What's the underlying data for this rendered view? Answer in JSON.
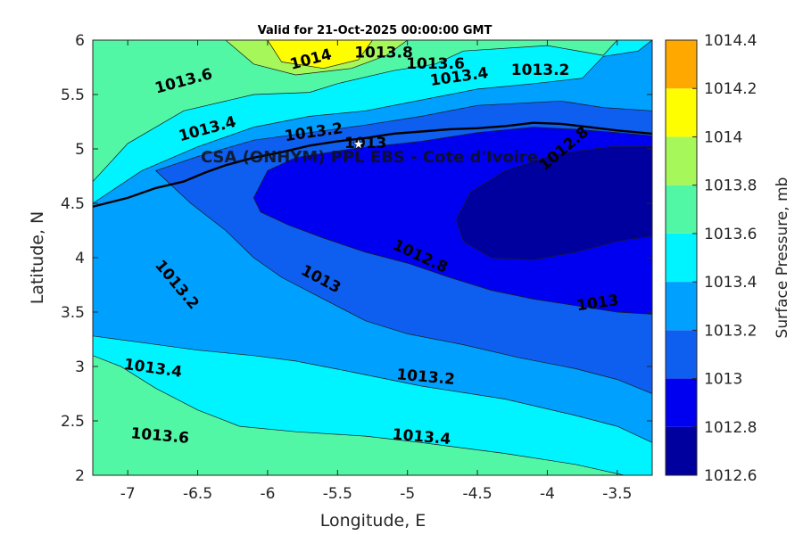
{
  "chart_data": {
    "type": "contour",
    "title": "Valid for 21-Oct-2025 00:00:00 GMT",
    "xlabel": "Longitude, E",
    "ylabel": "Latitude, N",
    "xlim": [
      -7.25,
      -3.25
    ],
    "ylim": [
      2,
      6
    ],
    "xticks": [
      -7,
      -6.5,
      -6,
      -5.5,
      -5,
      -4.5,
      -4,
      -3.5
    ],
    "xtick_labels": [
      "-7",
      "-6.5",
      "-6",
      "-5.5",
      "-5",
      "-4.5",
      "-4",
      "-3.5"
    ],
    "yticks": [
      2,
      2.5,
      3,
      3.5,
      4,
      4.5,
      5,
      5.5,
      6
    ],
    "ytick_labels": [
      "2",
      "2.5",
      "3",
      "3.5",
      "4",
      "4.5",
      "5",
      "5.5",
      "6"
    ],
    "annotation": "CSA (ONHYM) PPL EBS  - Cote d'Ivoire",
    "station": {
      "lon": -5.35,
      "lat": 5.05
    },
    "colorbar": {
      "label": "Surface Pressure, mb",
      "levels": [
        1012.6,
        1012.8,
        1013,
        1013.2,
        1013.4,
        1013.6,
        1013.8,
        1014,
        1014.2,
        1014.4
      ],
      "tick_labels": [
        "1012.6",
        "1012.8",
        "1013",
        "1013.2",
        "1013.4",
        "1013.6",
        "1013.8",
        "1014",
        "1014.2",
        "1014.4"
      ],
      "colors": [
        "#00009f",
        "#0000f0",
        "#0e5ef0",
        "#00a0ff",
        "#00f4ff",
        "#52f7a6",
        "#a6f75a",
        "#fffe00",
        "#ffa800",
        "#ff5500"
      ]
    },
    "regions": [
      {
        "level_index": 5,
        "points": [
          [
            -7.25,
            6
          ],
          [
            -3.25,
            6
          ],
          [
            -3.25,
            2
          ],
          [
            -7.25,
            2
          ]
        ]
      },
      {
        "level_index": 6,
        "points": [
          [
            -6.3,
            6
          ],
          [
            -6.1,
            5.78
          ],
          [
            -5.8,
            5.68
          ],
          [
            -5.4,
            5.74
          ],
          [
            -5.15,
            5.86
          ],
          [
            -5.0,
            6
          ]
        ]
      },
      {
        "level_index": 7,
        "points": [
          [
            -6.0,
            6
          ],
          [
            -5.9,
            5.8
          ],
          [
            -5.6,
            5.74
          ],
          [
            -5.35,
            5.82
          ],
          [
            -5.25,
            6
          ]
        ]
      },
      {
        "level_index": 4,
        "points": [
          [
            -7.25,
            4.7
          ],
          [
            -7.0,
            5.05
          ],
          [
            -6.6,
            5.35
          ],
          [
            -6.1,
            5.5
          ],
          [
            -5.7,
            5.52
          ],
          [
            -5.5,
            5.6
          ],
          [
            -5.1,
            5.72
          ],
          [
            -4.8,
            5.78
          ],
          [
            -4.6,
            5.9
          ],
          [
            -4.0,
            5.95
          ],
          [
            -3.6,
            5.86
          ],
          [
            -3.5,
            6
          ],
          [
            -3.25,
            6
          ],
          [
            -3.25,
            2
          ],
          [
            -3.45,
            2
          ],
          [
            -3.8,
            2.1
          ],
          [
            -4.3,
            2.2
          ],
          [
            -4.9,
            2.3
          ],
          [
            -5.3,
            2.36
          ],
          [
            -5.8,
            2.4
          ],
          [
            -6.2,
            2.45
          ],
          [
            -6.5,
            2.6
          ],
          [
            -6.8,
            2.8
          ],
          [
            -7.05,
            3.0
          ],
          [
            -7.25,
            3.1
          ]
        ]
      },
      {
        "level_index": 3,
        "points": [
          [
            -7.25,
            4.5
          ],
          [
            -6.9,
            4.8
          ],
          [
            -6.5,
            5.02
          ],
          [
            -6.1,
            5.2
          ],
          [
            -5.7,
            5.3
          ],
          [
            -5.3,
            5.35
          ],
          [
            -4.9,
            5.45
          ],
          [
            -4.5,
            5.55
          ],
          [
            -4.1,
            5.6
          ],
          [
            -3.75,
            5.65
          ],
          [
            -3.6,
            5.85
          ],
          [
            -3.35,
            5.9
          ],
          [
            -3.25,
            6
          ],
          [
            -3.25,
            2.3
          ],
          [
            -3.5,
            2.45
          ],
          [
            -3.8,
            2.55
          ],
          [
            -4.3,
            2.7
          ],
          [
            -4.9,
            2.82
          ],
          [
            -5.4,
            2.95
          ],
          [
            -5.8,
            3.05
          ],
          [
            -6.1,
            3.1
          ],
          [
            -6.5,
            3.15
          ],
          [
            -6.9,
            3.22
          ],
          [
            -7.25,
            3.28
          ]
        ]
      },
      {
        "level_index": 2,
        "points": [
          [
            -6.8,
            4.8
          ],
          [
            -6.5,
            4.93
          ],
          [
            -6.1,
            5.08
          ],
          [
            -5.7,
            5.15
          ],
          [
            -5.3,
            5.22
          ],
          [
            -4.9,
            5.3
          ],
          [
            -4.5,
            5.4
          ],
          [
            -4.2,
            5.42
          ],
          [
            -3.9,
            5.44
          ],
          [
            -3.6,
            5.38
          ],
          [
            -3.25,
            5.35
          ],
          [
            -3.25,
            2.75
          ],
          [
            -3.5,
            2.88
          ],
          [
            -3.8,
            2.98
          ],
          [
            -4.2,
            3.08
          ],
          [
            -4.6,
            3.2
          ],
          [
            -5.0,
            3.3
          ],
          [
            -5.3,
            3.42
          ],
          [
            -5.6,
            3.62
          ],
          [
            -5.9,
            3.82
          ],
          [
            -6.1,
            4.0
          ],
          [
            -6.3,
            4.25
          ],
          [
            -6.55,
            4.5
          ]
        ]
      },
      {
        "level_index": 1,
        "points": [
          [
            -6.1,
            4.55
          ],
          [
            -6.0,
            4.8
          ],
          [
            -5.8,
            4.92
          ],
          [
            -5.4,
            5.0
          ],
          [
            -4.9,
            5.07
          ],
          [
            -4.5,
            5.15
          ],
          [
            -4.1,
            5.2
          ],
          [
            -3.8,
            5.18
          ],
          [
            -3.5,
            5.15
          ],
          [
            -3.25,
            5.12
          ],
          [
            -3.25,
            3.48
          ],
          [
            -3.5,
            3.5
          ],
          [
            -3.8,
            3.56
          ],
          [
            -4.1,
            3.62
          ],
          [
            -4.4,
            3.7
          ],
          [
            -4.7,
            3.82
          ],
          [
            -5.0,
            3.95
          ],
          [
            -5.3,
            4.05
          ],
          [
            -5.6,
            4.18
          ],
          [
            -5.85,
            4.3
          ],
          [
            -6.05,
            4.42
          ]
        ]
      },
      {
        "level_index": 0,
        "points": [
          [
            -4.65,
            4.35
          ],
          [
            -4.55,
            4.6
          ],
          [
            -4.3,
            4.8
          ],
          [
            -3.95,
            4.95
          ],
          [
            -3.55,
            5.02
          ],
          [
            -3.25,
            5.02
          ],
          [
            -3.25,
            4.2
          ],
          [
            -3.5,
            4.15
          ],
          [
            -3.8,
            4.05
          ],
          [
            -4.1,
            3.98
          ],
          [
            -4.4,
            4.0
          ],
          [
            -4.6,
            4.15
          ]
        ]
      }
    ],
    "coastline": [
      [
        -7.25,
        4.47
      ],
      [
        -7.0,
        4.55
      ],
      [
        -6.8,
        4.64
      ],
      [
        -6.6,
        4.7
      ],
      [
        -6.45,
        4.78
      ],
      [
        -6.3,
        4.85
      ],
      [
        -6.1,
        4.92
      ],
      [
        -5.9,
        4.97
      ],
      [
        -5.7,
        5.03
      ],
      [
        -5.5,
        5.07
      ],
      [
        -5.3,
        5.1
      ],
      [
        -5.1,
        5.14
      ],
      [
        -4.9,
        5.16
      ],
      [
        -4.7,
        5.18
      ],
      [
        -4.5,
        5.19
      ],
      [
        -4.3,
        5.21
      ],
      [
        -4.1,
        5.24
      ],
      [
        -3.9,
        5.23
      ],
      [
        -3.7,
        5.2
      ],
      [
        -3.5,
        5.17
      ],
      [
        -3.25,
        5.14
      ]
    ],
    "contour_labels": [
      {
        "text": "1014",
        "lon": -5.69,
        "lat": 5.82,
        "angle": -15
      },
      {
        "text": "1013.8",
        "lon": -5.17,
        "lat": 5.88,
        "angle": 0
      },
      {
        "text": "1013.6",
        "lon": -4.8,
        "lat": 5.78,
        "angle": 0
      },
      {
        "text": "1013.4",
        "lon": -4.63,
        "lat": 5.66,
        "angle": -8
      },
      {
        "text": "1013.2",
        "lon": -4.05,
        "lat": 5.72,
        "angle": 0
      },
      {
        "text": "1013.6",
        "lon": -6.6,
        "lat": 5.62,
        "angle": -15
      },
      {
        "text": "1013.4",
        "lon": -6.43,
        "lat": 5.18,
        "angle": -15
      },
      {
        "text": "1013.2",
        "lon": -5.67,
        "lat": 5.15,
        "angle": -8
      },
      {
        "text": "1013",
        "lon": -5.3,
        "lat": 5.05,
        "angle": 0
      },
      {
        "text": "1012.8",
        "lon": -3.88,
        "lat": 5.0,
        "angle": -40
      },
      {
        "text": "1013.2",
        "lon": -6.65,
        "lat": 3.75,
        "angle": 50
      },
      {
        "text": "1012.8",
        "lon": -4.91,
        "lat": 4.01,
        "angle": 25
      },
      {
        "text": "1013",
        "lon": -5.62,
        "lat": 3.8,
        "angle": 28
      },
      {
        "text": "1013",
        "lon": -3.64,
        "lat": 3.58,
        "angle": -8
      },
      {
        "text": "1013.4",
        "lon": -6.82,
        "lat": 2.98,
        "angle": 8
      },
      {
        "text": "1013.2",
        "lon": -4.87,
        "lat": 2.9,
        "angle": 5
      },
      {
        "text": "1013.6",
        "lon": -6.77,
        "lat": 2.36,
        "angle": 5
      },
      {
        "text": "1013.4",
        "lon": -4.9,
        "lat": 2.35,
        "angle": 5
      }
    ]
  }
}
